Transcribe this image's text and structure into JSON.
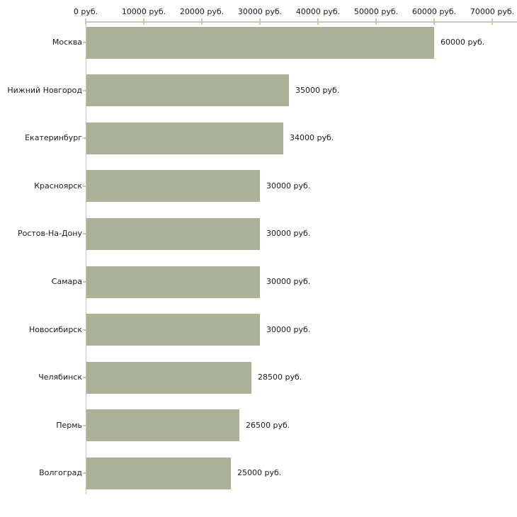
{
  "chart_data": {
    "type": "bar",
    "orientation": "horizontal",
    "title": "",
    "xlabel": "",
    "ylabel": "",
    "unit": "руб.",
    "categories": [
      "Москва",
      "Нижний Новгород",
      "Екатеринбург",
      "Красноярск",
      "Ростов-На-Дону",
      "Самара",
      "Новосибирск",
      "Челябинск",
      "Пермь",
      "Волгоград"
    ],
    "values": [
      60000,
      35000,
      34000,
      30000,
      30000,
      30000,
      30000,
      28500,
      26500,
      25000
    ],
    "value_labels": [
      "60000 руб.",
      "35000 руб.",
      "34000 руб.",
      "30000 руб.",
      "30000 руб.",
      "30000 руб.",
      "30000 руб.",
      "28500 руб.",
      "26500 руб.",
      "25000 руб."
    ],
    "x_axis": {
      "position": "top",
      "min": 0,
      "max": 70000,
      "tick_step": 10000,
      "tick_values": [
        0,
        10000,
        20000,
        30000,
        40000,
        50000,
        60000,
        70000
      ],
      "tick_labels": [
        "0 руб.",
        "10000 руб.",
        "20000 руб.",
        "30000 руб.",
        "40000 руб.",
        "50000 руб.",
        "60000 руб.",
        "70000 руб."
      ]
    },
    "grid": false,
    "legend": false,
    "colors": {
      "bar": "#acb298",
      "axis_line": "#c6c6c6",
      "tick": "#cccc99",
      "text": "#1a1a1a",
      "background": "#ffffff"
    }
  }
}
